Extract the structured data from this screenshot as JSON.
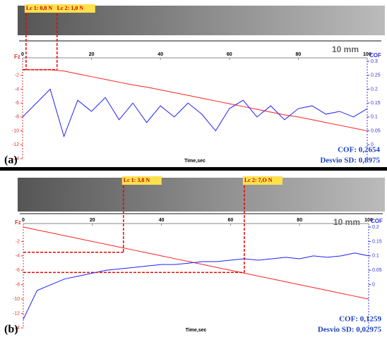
{
  "chart_data": [
    {
      "type": "line",
      "panel_label": "(a)",
      "scale_label": "10 mm",
      "x_label": "Time,sec",
      "y_label": "Fz",
      "y2_label": "COF",
      "stats": [
        "COF: 0,2654",
        "Desvio SD: 0,8975"
      ],
      "x": [
        0,
        4,
        8,
        12,
        16,
        20,
        24,
        28,
        32,
        36,
        40,
        44,
        48,
        52,
        56,
        60,
        64,
        68,
        72,
        76,
        80,
        84,
        88,
        92,
        96,
        100
      ],
      "series": [
        {
          "color": "#ff2020",
          "values": [
            -1.2,
            -1.2,
            -1.2,
            -1.4,
            -1.8,
            -2.2,
            -2.6,
            -3.0,
            -3.4,
            -3.7,
            -4.1,
            -4.5,
            -4.9,
            -5.3,
            -5.7,
            -6.1,
            -6.5,
            -6.9,
            -7.3,
            -7.7,
            -8.0,
            -8.4,
            -8.8,
            -9.2,
            -9.6,
            -10
          ]
        },
        {
          "color": "#2020ff",
          "axis": "y2",
          "values": [
            0.1,
            0.15,
            0.2,
            0.03,
            0.16,
            0.12,
            0.17,
            0.09,
            0.15,
            0.08,
            0.14,
            0.1,
            0.15,
            0.11,
            0.05,
            0.13,
            0.16,
            0.1,
            0.14,
            0.09,
            0.13,
            0.14,
            0.11,
            0.12,
            0.1,
            0.13
          ]
        }
      ],
      "annotations": [
        {
          "text": "Lc 1: 0,8 N",
          "x": 1,
          "y": -1.2
        },
        {
          "text": "Lc 2: 1,0 N",
          "x": 10,
          "y": -1.2
        }
      ],
      "xlim": [
        0,
        100
      ],
      "xticks": [
        0,
        20,
        40,
        60,
        80,
        100
      ],
      "ylim": [
        -14,
        0
      ],
      "yticks": [
        -2,
        -4,
        -6,
        -8,
        -10,
        -12,
        -14
      ],
      "y2lim": [
        -0.05,
        0.3
      ],
      "y2ticks": [
        0.3,
        0.25,
        0.2,
        0.15,
        0.1,
        0.05,
        0
      ]
    },
    {
      "type": "line",
      "panel_label": "(b)",
      "scale_label": "10 mm",
      "x_label": "Time,sec",
      "y_label": "Fz",
      "y2_label": "COF",
      "stats": [
        "COF: 0,1259",
        "Desvio SD: 0,02975"
      ],
      "x": [
        0,
        4,
        8,
        12,
        16,
        20,
        24,
        28,
        32,
        36,
        40,
        44,
        48,
        52,
        56,
        60,
        64,
        68,
        72,
        76,
        80,
        84,
        88,
        92,
        96,
        100
      ],
      "series": [
        {
          "color": "#ff2020",
          "values": [
            0,
            -0.4,
            -0.8,
            -1.2,
            -1.6,
            -2,
            -2.4,
            -2.8,
            -3.2,
            -3.6,
            -4,
            -4.4,
            -4.8,
            -5.2,
            -5.6,
            -6,
            -6.4,
            -6.8,
            -7.2,
            -7.6,
            -8,
            -8.4,
            -8.8,
            -9.2,
            -9.6,
            -10
          ]
        },
        {
          "color": "#2020ff",
          "axis": "y2",
          "values": [
            -0.12,
            -0.02,
            0.0,
            0.02,
            0.03,
            0.04,
            0.05,
            0.055,
            0.06,
            0.065,
            0.07,
            0.07,
            0.075,
            0.08,
            0.08,
            0.085,
            0.09,
            0.085,
            0.09,
            0.095,
            0.09,
            0.1,
            0.095,
            0.1,
            0.11,
            0.1
          ]
        }
      ],
      "annotations": [
        {
          "text": "Lc 1: 3,8 N",
          "x": 29,
          "y": -3.5
        },
        {
          "text": "Lc 2: 7,O N",
          "x": 64,
          "y": -6.3
        }
      ],
      "xlim": [
        0,
        100
      ],
      "xticks": [
        0,
        20,
        40,
        60,
        80,
        100
      ],
      "ylim": [
        -14,
        0
      ],
      "yticks": [
        -2,
        -4,
        -6,
        -8,
        -10,
        -12,
        -14
      ],
      "y2lim": [
        -0.15,
        0.2
      ],
      "y2ticks": [
        0.2,
        0.15,
        0.1,
        0.05,
        0
      ]
    }
  ]
}
